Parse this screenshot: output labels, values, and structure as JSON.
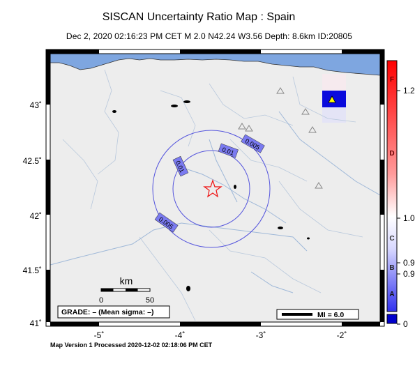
{
  "title": "SISCAN Uncertainty Ratio Map : Spain",
  "subtitle": "Dec  2, 2020 02:16:23 PM CET   M 2.0   N42.24 W3.56   Depth: 8.6km   ID:20805",
  "footer": "Map Version 1 Processed 2020-12-02 02:18:06 PM CET",
  "axes": {
    "lon_ticks": [
      "-5˚",
      "-4˚",
      "-3˚",
      "-2˚"
    ],
    "lat_ticks": [
      "43˚",
      "42.5˚",
      "42˚",
      "41.5˚",
      "41˚"
    ]
  },
  "contours": {
    "labels": [
      "0.01",
      "0.005",
      "0.01",
      "0.005"
    ]
  },
  "scale_bar": {
    "unit": "km",
    "ticks": [
      "0",
      "50"
    ]
  },
  "grade_box": "GRADE: – (Mean sigma: –)",
  "mi_legend": "MI = 6.0",
  "colorbar": {
    "right_labels": [
      "1.2",
      "1.0",
      "0.9",
      "0.9",
      "0"
    ],
    "inner_letters": [
      "F",
      "D",
      "C",
      "B",
      "A"
    ],
    "colors": {
      "top": "#ff0000",
      "mid": "#ffffff",
      "low": "#4444ee",
      "zero": "#0000cc"
    }
  },
  "colors": {
    "sea": "#7ea6e0",
    "land": "#ededed",
    "river": "#9fb8d8",
    "contour": "#5555dd",
    "epicenter": "#ee1111"
  },
  "icons": {
    "epicenter": "star-icon",
    "station": "triangle-icon"
  }
}
